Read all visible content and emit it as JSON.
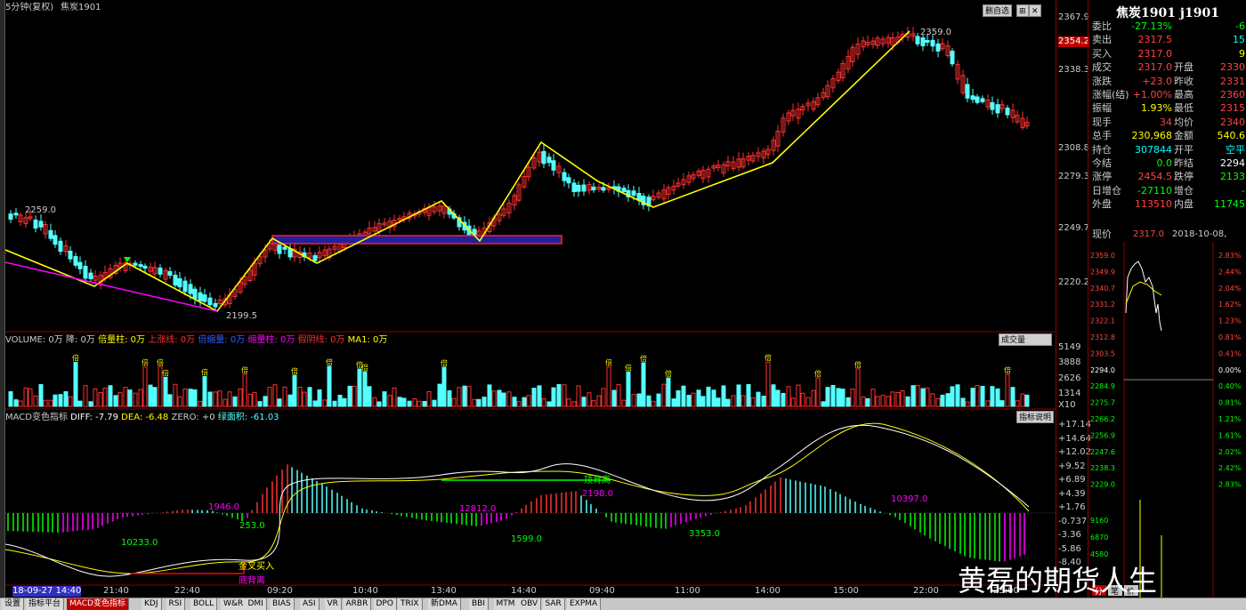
{
  "chart_header": {
    "period": "5分钟(复权)",
    "symbol_name": "焦炭1901"
  },
  "buttons": {
    "auto_chart": "删自选",
    "full_screen": "⊞",
    "close": "✕"
  },
  "price_axis": [
    "2367.9",
    "2354.2",
    "2338.3",
    "2308.8",
    "2279.3",
    "2249.7",
    "2220.2"
  ],
  "price_current_tag": "2354.2",
  "annotations": {
    "high_label": "2359.0",
    "low_label": "2199.5",
    "early_high_label": "2259.0"
  },
  "volume_legend": {
    "volume": "VOLUME: 0万",
    "drop": "降: 0万",
    "multiple": "倍量柱: 0万",
    "up_trend": "上涨线: 0万",
    "multi_drop": "倍缩量: 0万",
    "shrink": "缩量柱: 0万",
    "fake_drop": "假阴线: 0万",
    "ma1": "MA1: 0万"
  },
  "volume_select": "成交量",
  "volume_axis": [
    "5149",
    "3888",
    "2626",
    "1314",
    "X10"
  ],
  "volume_markers": {
    "times": "倍",
    "high": "高"
  },
  "macd_legend": {
    "name": "MACD变色指标",
    "diff": "DIFF: -7.79",
    "dea": "DEA: -6.48",
    "zero": "ZERO: +0",
    "area": "绿面积: -61.03"
  },
  "macd_button": "指标说明",
  "macd_axis": [
    "+17.14",
    "+14.64",
    "+12.02",
    "+9.52",
    "+6.89",
    "+4.39",
    "+1.76",
    "-0.737",
    "-3.36",
    "-5.86",
    "-8.40"
  ],
  "macd_labels": {
    "a": "1946.0",
    "b": "10233.0",
    "c": "253.0",
    "d": "12812.0",
    "e": "1599.0",
    "f": "2198.0",
    "g": "3353.0",
    "h": "10397.0",
    "golden_cross": "金叉买入",
    "bottom_div": "底背离",
    "top_div": "顶背离"
  },
  "time_axis": [
    "18-09-27 14:40",
    "21:40",
    "22:40",
    "09:20",
    "10:40",
    "13:40",
    "14:40",
    "09:40",
    "11:00",
    "14:00",
    "15:00",
    "22:00",
    "23:00"
  ],
  "info": {
    "title": "焦炭1901 j1901",
    "rows": [
      {
        "l": "委比",
        "v": "-27.13%",
        "vc": "#00ff00",
        "l2": "",
        "v2": "-6",
        "v2c": "#00ff00"
      },
      {
        "l": "卖出",
        "v": "2317.5",
        "vc": "#ff4444",
        "l2": "",
        "v2": "15",
        "v2c": "#00ffff"
      },
      {
        "l": "买入",
        "v": "2317.0",
        "vc": "#ff4444",
        "l2": "",
        "v2": "9",
        "v2c": "#ffff00"
      },
      {
        "l": "成交",
        "v": "2317.0",
        "vc": "#ff4444",
        "l2": "开盘",
        "v2": "2330",
        "v2c": "#ff4444"
      },
      {
        "l": "涨跌",
        "v": "+23.0",
        "vc": "#ff4444",
        "l2": "昨收",
        "v2": "2331",
        "v2c": "#ff4444"
      },
      {
        "l": "涨幅(结)",
        "v": "+1.00%",
        "vc": "#ff4444",
        "l2": "最高",
        "v2": "2360",
        "v2c": "#ff4444"
      },
      {
        "l": "振幅",
        "v": "1.93%",
        "vc": "#ffff00",
        "l2": "最低",
        "v2": "2315",
        "v2c": "#ff4444"
      },
      {
        "l": "现手",
        "v": "34",
        "vc": "#ff4444",
        "l2": "均价",
        "v2": "2340",
        "v2c": "#ff4444"
      },
      {
        "l": "总手",
        "v": "230,968",
        "vc": "#ffff00",
        "l2": "金额",
        "v2": "540.6",
        "v2c": "#ffff00"
      },
      {
        "l": "持仓",
        "v": "307844",
        "vc": "#00ffff",
        "l2": "开平",
        "v2": "空平",
        "v2c": "#00ffff"
      },
      {
        "l": "今结",
        "v": "0.0",
        "vc": "#00ff00",
        "l2": "昨结",
        "v2": "2294",
        "v2c": "#ffffff"
      },
      {
        "l": "涨停",
        "v": "2454.5",
        "vc": "#ff4444",
        "l2": "跌停",
        "v2": "2133",
        "v2c": "#00ff00"
      },
      {
        "l": "日增仓",
        "v": "-27110",
        "vc": "#00ff00",
        "l2": "增仓",
        "v2": "-",
        "v2c": "#00ff00"
      },
      {
        "l": "外盘",
        "v": "113510",
        "vc": "#ff4444",
        "l2": "内盘",
        "v2": "11745",
        "v2c": "#00ff00"
      }
    ],
    "price_label": "现价",
    "price_value": "2317.0",
    "date": "2018-10-08,"
  },
  "mini_axis_left": [
    "2359.0",
    "2349.9",
    "2340.7",
    "2331.2",
    "2322.1",
    "2312.8",
    "2303.5",
    "2294.0",
    "2284.9",
    "2275.7",
    "2266.2",
    "2256.9",
    "2247.6",
    "2238.3",
    "2229.0",
    "9160",
    "6870",
    "4580"
  ],
  "mini_axis_right": [
    "2.83%",
    "2.44%",
    "2.04%",
    "1.62%",
    "1.23%",
    "0.81%",
    "0.41%",
    "0.00%",
    "0.40%",
    "0.81%",
    "1.21%",
    "1.61%",
    "2.02%",
    "2.42%",
    "2.83%"
  ],
  "mini_tabs": [
    "分",
    "笔",
    "价"
  ],
  "watermark": "黄磊的期货人生",
  "tabs": [
    "设置",
    "指标平台",
    "MACD变色指标",
    "KDJ",
    "RSI",
    "BOLL",
    "W&R",
    "DMI",
    "BIAS",
    "ASI",
    "VR",
    "ARBR",
    "DPO",
    "TRIX",
    "新DMA",
    "BBI",
    "MTM",
    "OBV",
    "SAR",
    "EXPMA"
  ],
  "active_tab": "MACD变色指标",
  "colors": {
    "up": "#ff3030",
    "down": "#54ffff",
    "trend": "#ffff00",
    "pink": "#ff00ff",
    "box": "#2020a0"
  }
}
